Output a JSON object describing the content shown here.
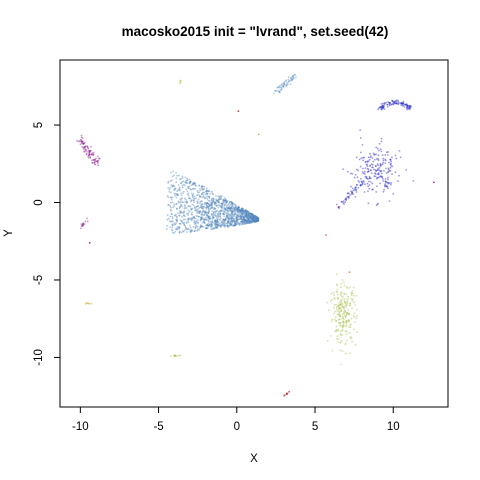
{
  "chart_data": {
    "type": "scatter",
    "title": "macosko2015 init = \"lvrand\", set.seed(42)",
    "xlabel": "X",
    "ylabel": "Y",
    "xlim": [
      -11.3,
      13.5
    ],
    "ylim": [
      -13.2,
      9.2
    ],
    "xticks": [
      -10,
      -5,
      0,
      5,
      10
    ],
    "yticks": [
      -10,
      -5,
      0,
      5
    ],
    "xtick_labels": [
      "-10",
      "-5",
      "0",
      "5",
      "10"
    ],
    "ytick_labels": [
      "-10",
      "-5",
      "0",
      "5"
    ],
    "grid": false,
    "legend": "none",
    "clusters": [
      {
        "color": "#4f86bd",
        "shape": "teardrop",
        "center": [
          -2.6,
          0.1
        ],
        "spread": [
          2.2,
          1.4
        ],
        "points": 1400
      },
      {
        "color": "#5b8fc4",
        "shape": "streak",
        "from": [
          2.5,
          7.1
        ],
        "to": [
          3.8,
          8.3
        ],
        "spread": [
          0.25,
          0.25
        ],
        "points": 60
      },
      {
        "color": "#1f1fcf",
        "shape": "leaf",
        "center": [
          8.9,
          2.0
        ],
        "spread": [
          0.8,
          0.8
        ],
        "points": 260
      },
      {
        "color": "#2a2ac8",
        "shape": "arc",
        "center": [
          10.1,
          6.3
        ],
        "spread": [
          0.9,
          0.3
        ],
        "points": 110
      },
      {
        "color": "#8b1a8b",
        "shape": "streak",
        "from": [
          -10.0,
          4.0
        ],
        "to": [
          -8.9,
          2.5
        ],
        "spread": [
          0.3,
          0.4
        ],
        "points": 90
      },
      {
        "color": "#8b1a8b",
        "shape": "streak",
        "from": [
          -10.0,
          -1.6
        ],
        "to": [
          -9.4,
          -1.0
        ],
        "spread": [
          0.1,
          0.1
        ],
        "points": 15
      },
      {
        "color": "#a3c24a",
        "shape": "blob",
        "center": [
          6.8,
          -7.2
        ],
        "spread": [
          0.6,
          1.4
        ],
        "points": 230
      },
      {
        "color": "#a3c24a",
        "shape": "streak",
        "from": [
          -4.2,
          -9.9
        ],
        "to": [
          -3.6,
          -9.9
        ],
        "spread": [
          0.05,
          0.05
        ],
        "points": 12
      },
      {
        "color": "#c8b43c",
        "shape": "streak",
        "from": [
          -9.7,
          -6.5
        ],
        "to": [
          -9.3,
          -6.5
        ],
        "spread": [
          0.05,
          0.05
        ],
        "points": 8
      },
      {
        "color": "#b22222",
        "shape": "streak",
        "from": [
          3.0,
          -12.5
        ],
        "to": [
          3.4,
          -12.2
        ],
        "spread": [
          0.05,
          0.05
        ],
        "points": 12
      },
      {
        "color": "#9acd32",
        "shape": "streak",
        "from": [
          -3.6,
          7.7
        ],
        "to": [
          -3.6,
          7.9
        ],
        "spread": [
          0.05,
          0.05
        ],
        "points": 5
      }
    ],
    "outliers": [
      {
        "x": 0.1,
        "y": 5.9,
        "color": "#cc2222"
      },
      {
        "x": 1.4,
        "y": 4.4,
        "color": "#9acd32"
      },
      {
        "x": 12.6,
        "y": 1.3,
        "color": "#8b1a8b"
      },
      {
        "x": 5.7,
        "y": -2.1,
        "color": "#c86464"
      },
      {
        "x": -9.4,
        "y": -2.6,
        "color": "#8b1a8b"
      },
      {
        "x": 7.2,
        "y": -4.5,
        "color": "#e08030"
      },
      {
        "x": 6.5,
        "y": -0.3,
        "color": "#8b1a8b"
      }
    ]
  }
}
